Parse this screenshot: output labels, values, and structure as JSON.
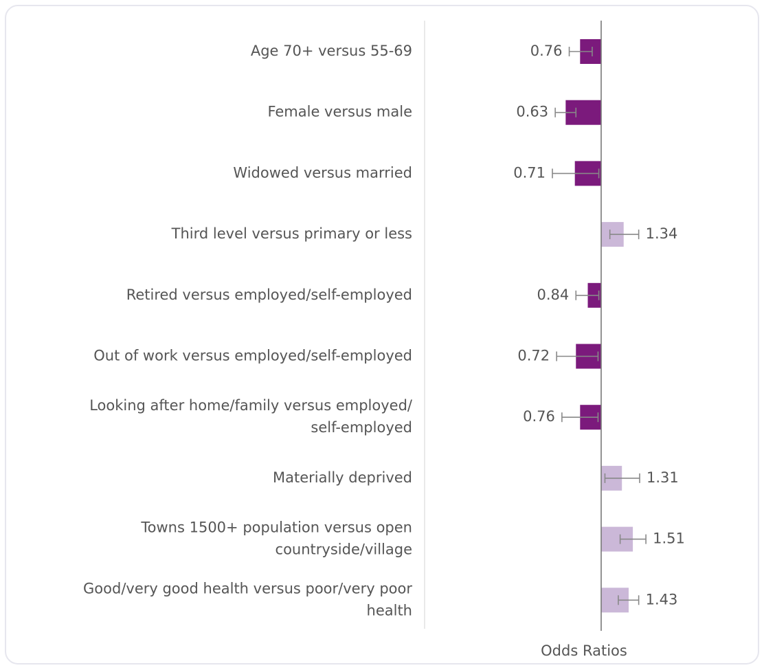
{
  "chart_data": {
    "type": "bar",
    "orientation": "horizontal",
    "x_label": "Odds Ratios",
    "log_scale": true,
    "xlim": [
      0.2,
      5
    ],
    "categories": [
      [
        "Age 70+ versus 55-69"
      ],
      [
        "Female versus male"
      ],
      [
        "Widowed versus married"
      ],
      [
        "Third level versus primary or less"
      ],
      [
        "Retired versus employed/self-employed"
      ],
      [
        "Out of work versus employed/self-employed"
      ],
      [
        "Looking after home/family versus employed/",
        "self-employed"
      ],
      [
        "Materially deprived"
      ],
      [
        "Towns 1500+ population versus open",
        "countryside/village"
      ],
      [
        "Good/very good health versus poor/very poor",
        "health"
      ]
    ],
    "values": [
      0.76,
      0.63,
      0.71,
      1.34,
      0.84,
      0.72,
      0.76,
      1.31,
      1.51,
      1.43
    ],
    "ci_low": [
      0.66,
      0.55,
      0.53,
      1.12,
      0.72,
      0.56,
      0.6,
      1.05,
      1.28,
      1.25
    ],
    "ci_high": [
      0.89,
      0.72,
      0.97,
      1.63,
      0.97,
      0.96,
      0.96,
      1.65,
      1.79,
      1.63
    ],
    "colors": [
      "#7b1a7c",
      "#7b1a7c",
      "#7b1a7c",
      "#cbb8d8",
      "#7b1a7c",
      "#7b1a7c",
      "#7b1a7c",
      "#cbb8d8",
      "#cbb8d8",
      "#cbb8d8"
    ]
  }
}
